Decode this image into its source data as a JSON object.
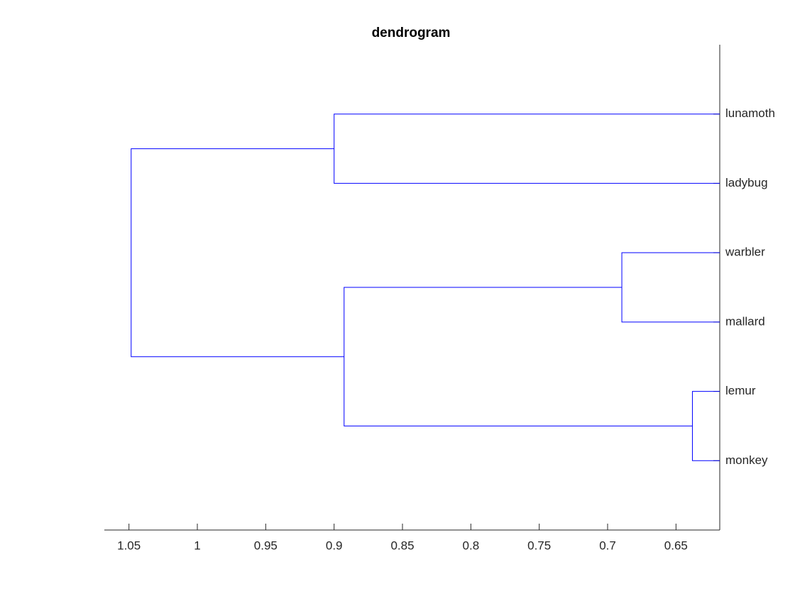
{
  "chart_data": {
    "type": "dendrogram",
    "title": "dendrogram",
    "leaves": [
      "lunamoth",
      "ladybug",
      "warbler",
      "mallard",
      "lemur",
      "monkey"
    ],
    "links": [
      {
        "left": 0,
        "right": 1,
        "height": 0.9
      },
      {
        "left": 2,
        "right": 3,
        "height": 0.6896
      },
      {
        "left": 4,
        "right": 5,
        "height": 0.638
      },
      {
        "left": 7,
        "right": 8,
        "height": 0.8927
      },
      {
        "left": 6,
        "right": 9,
        "height": 1.0484
      }
    ],
    "color": "#0000ff",
    "xlim": [
      0.618,
      1.068
    ],
    "xdir": "reverse",
    "xticks": [
      0.65,
      0.7,
      0.75,
      0.8,
      0.85,
      0.9,
      0.95,
      1,
      1.05
    ]
  }
}
